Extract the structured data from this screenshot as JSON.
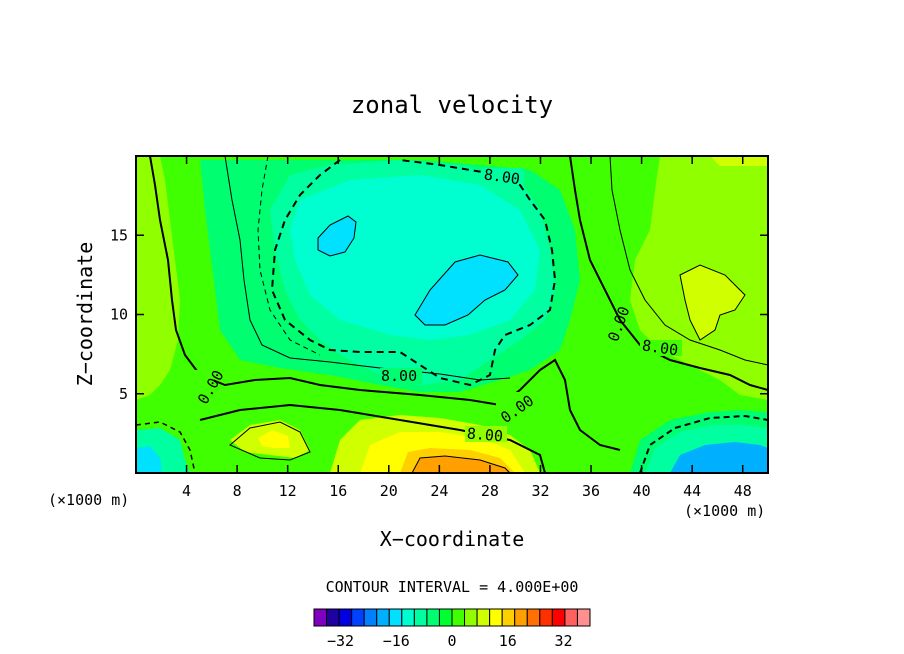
{
  "chart_data": {
    "type": "heatmap",
    "title": "zonal velocity",
    "xlabel": "X−coordinate",
    "ylabel": "Z−coordinate",
    "x_unit_left": "(×1000 m)",
    "x_unit_right": "(×1000 m)",
    "xlim": [
      0,
      50
    ],
    "ylim": [
      0,
      20
    ],
    "x_ticks": [
      4,
      8,
      12,
      16,
      20,
      24,
      28,
      32,
      36,
      40,
      44,
      48
    ],
    "y_ticks": [
      5,
      10,
      15
    ],
    "contour_interval_text": "CONTOUR INTERVAL = 4.000E+00",
    "contour_labels": [
      "8.00",
      "0.00",
      "8.00",
      "0.00",
      "8.00",
      "0.00",
      "8.00"
    ],
    "colorbar": {
      "levels": [
        -36,
        -32,
        -28,
        -24,
        -20,
        -16,
        -12,
        -8,
        -4,
        0,
        4,
        8,
        12,
        16,
        20,
        24,
        28,
        32,
        36
      ],
      "tick_values": [
        -32,
        -16,
        0,
        16,
        32
      ],
      "tick_labels": [
        "−32",
        "−16",
        "0",
        "16",
        "32"
      ],
      "colors": [
        "#8000c0",
        "#2000a0",
        "#0000e0",
        "#0040ff",
        "#0080ff",
        "#00b0ff",
        "#00e0ff",
        "#00ffd0",
        "#00ffa0",
        "#00ff70",
        "#00ff30",
        "#40ff00",
        "#90ff00",
        "#d0ff00",
        "#ffff00",
        "#ffd000",
        "#ffa000",
        "#ff7000",
        "#ff3000",
        "#ff0000",
        "#ff6060",
        "#ff9090"
      ]
    }
  }
}
